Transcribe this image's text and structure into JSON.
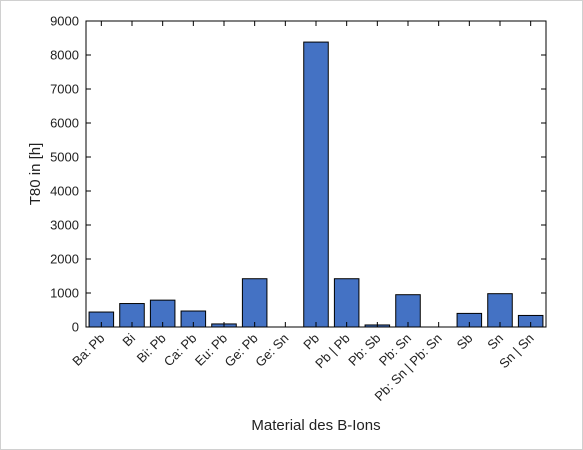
{
  "chart_data": {
    "type": "bar",
    "categories": [
      "Ba: Pb",
      "Bi",
      "Bi: Pb",
      "Ca: Pb",
      "Eu: Pb",
      "Ge: Pb",
      "Ge: Sn",
      "Pb",
      "Pb | Pb",
      "Pb: Sb",
      "Pb: Sn",
      "Pb: Sn | Pb: Sn",
      "Sb",
      "Sn",
      "Sn | Sn"
    ],
    "values": [
      440,
      690,
      790,
      470,
      90,
      1420,
      0,
      8380,
      1420,
      60,
      950,
      0,
      400,
      980,
      340
    ],
    "title": "",
    "xlabel": "Material des B-Ions",
    "ylabel": "T80 in [h]",
    "ylim": [
      0,
      9000
    ],
    "yticks": [
      0,
      1000,
      2000,
      3000,
      4000,
      5000,
      6000,
      7000,
      8000,
      9000
    ],
    "grid": false,
    "bar_color": "#4472c4",
    "bar_edge": "#000000"
  }
}
